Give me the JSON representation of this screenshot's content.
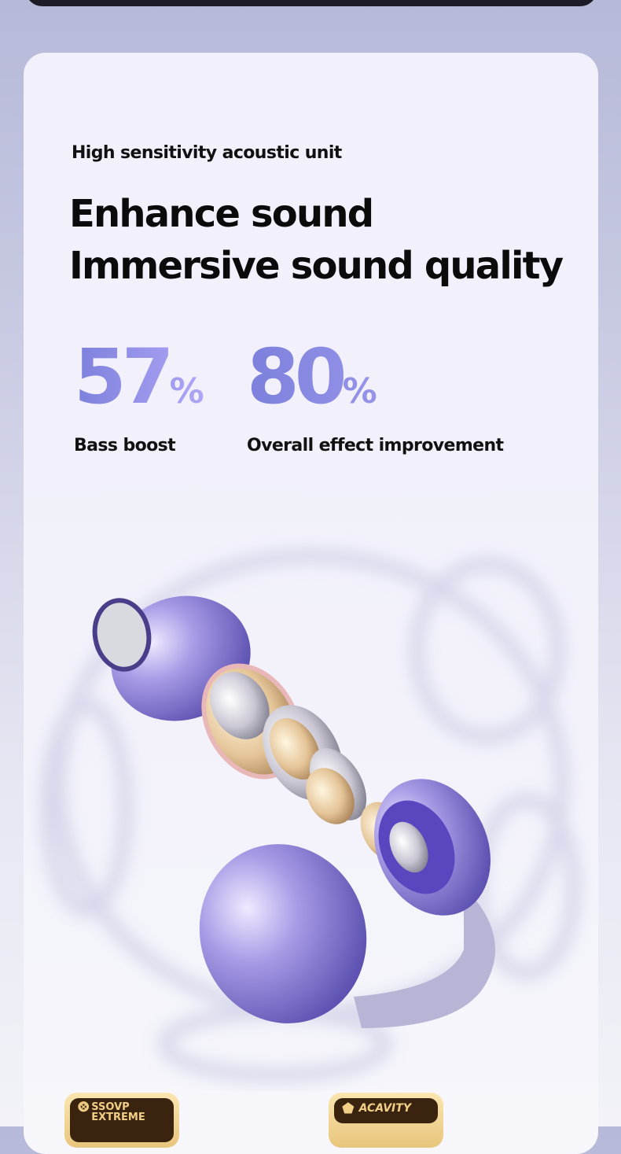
{
  "subtitle": "High sensitivity acoustic unit",
  "headline": [
    "Enhance sound",
    "Immersive sound quality"
  ],
  "stats": [
    {
      "value": "57",
      "unit": "%",
      "label": "Bass boost"
    },
    {
      "value": "80",
      "unit": "%",
      "label": "Overall effect improvement"
    }
  ],
  "badges": [
    {
      "line1": "SSOVP",
      "line2": "EXTREME"
    },
    {
      "text": "ACAVITY"
    }
  ],
  "colors": {
    "accent_start": "#7c80dc",
    "accent_end": "#b0a6f6",
    "badge_gold": "#e8c57c",
    "badge_dark": "#3a2410"
  }
}
